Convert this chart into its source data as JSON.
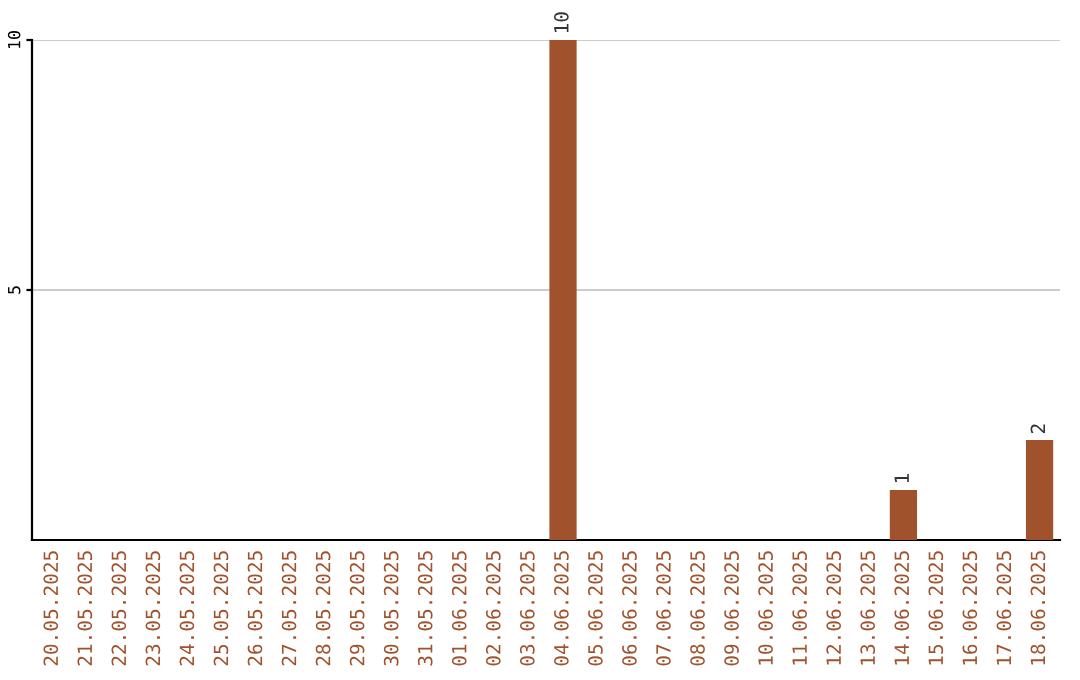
{
  "chart_data": {
    "type": "bar",
    "categories": [
      "20.05.2025",
      "21.05.2025",
      "22.05.2025",
      "23.05.2025",
      "24.05.2025",
      "25.05.2025",
      "26.05.2025",
      "27.05.2025",
      "28.05.2025",
      "29.05.2025",
      "30.05.2025",
      "31.05.2025",
      "01.06.2025",
      "02.06.2025",
      "03.06.2025",
      "04.06.2025",
      "05.06.2025",
      "06.06.2025",
      "07.06.2025",
      "08.06.2025",
      "09.06.2025",
      "10.06.2025",
      "11.06.2025",
      "12.06.2025",
      "13.06.2025",
      "14.06.2025",
      "15.06.2025",
      "16.06.2025",
      "17.06.2025",
      "18.06.2025"
    ],
    "values": [
      0,
      0,
      0,
      0,
      0,
      0,
      0,
      0,
      0,
      0,
      0,
      0,
      0,
      0,
      0,
      10,
      0,
      0,
      0,
      0,
      0,
      0,
      0,
      0,
      0,
      1,
      0,
      0,
      0,
      2
    ],
    "value_labels": [
      null,
      null,
      null,
      null,
      null,
      null,
      null,
      null,
      null,
      null,
      null,
      null,
      null,
      null,
      null,
      "10",
      null,
      null,
      null,
      null,
      null,
      null,
      null,
      null,
      null,
      "1",
      null,
      null,
      null,
      "2"
    ],
    "color": "#a0522d",
    "ylim": [
      0,
      10
    ],
    "yticks": [
      5,
      10
    ],
    "grid": "y"
  }
}
